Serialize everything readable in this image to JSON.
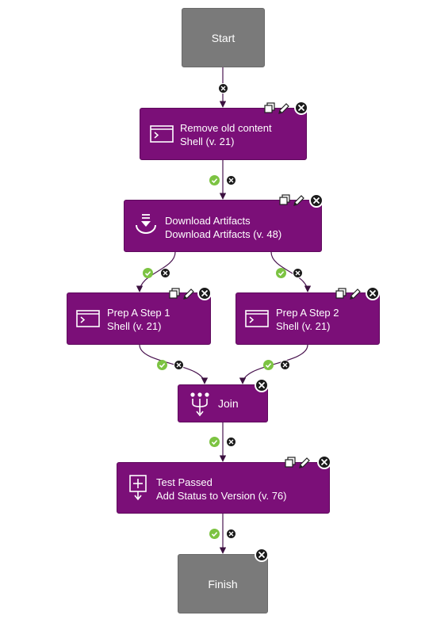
{
  "nodes": {
    "start": {
      "label": "Start"
    },
    "remove_old": {
      "title": "Remove old content",
      "subtitle": "Shell (v. 21)",
      "icon": "shell-icon"
    },
    "download": {
      "title": "Download Artifacts",
      "subtitle": "Download Artifacts (v. 48)",
      "icon": "download-artifacts-icon"
    },
    "prep1": {
      "title": "Prep A Step 1",
      "subtitle": "Shell (v. 21)",
      "icon": "shell-icon"
    },
    "prep2": {
      "title": "Prep A Step 2",
      "subtitle": "Shell (v. 21)",
      "icon": "shell-icon"
    },
    "join": {
      "title": "Join",
      "icon": "join-icon"
    },
    "test_passed": {
      "title": "Test Passed",
      "subtitle": "Add Status to Version (v. 76)",
      "icon": "add-status-icon"
    },
    "finish": {
      "label": "Finish"
    }
  },
  "colors": {
    "step": "#7b0f78",
    "endpoint": "#7a7a7a",
    "edge": "#5b1a5a",
    "success": "#7cc342",
    "failure": "#1b1b1b"
  }
}
